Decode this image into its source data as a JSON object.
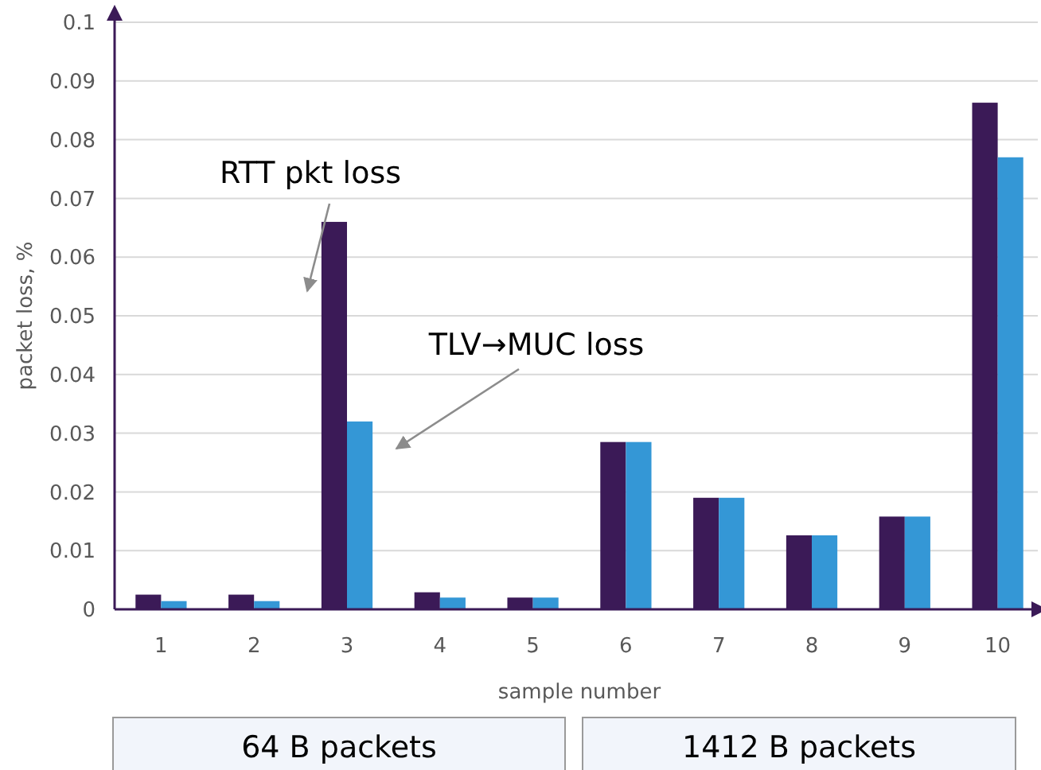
{
  "chart_data": {
    "type": "bar",
    "xlabel": "sample number",
    "ylabel": "packet loss, %",
    "categories": [
      "1",
      "2",
      "3",
      "4",
      "5",
      "6",
      "7",
      "8",
      "9",
      "10"
    ],
    "series": [
      {
        "color": "#3b1a57",
        "values": [
          0.0025,
          0.0025,
          0.066,
          0.0029,
          0.002,
          0.0285,
          0.019,
          0.0126,
          0.0158,
          0.0863
        ]
      },
      {
        "color": "#3497d6",
        "values": [
          0.0014,
          0.0014,
          0.032,
          0.002,
          0.002,
          0.0285,
          0.019,
          0.0126,
          0.0158,
          0.077
        ]
      }
    ],
    "ylim": [
      0,
      0.1
    ],
    "yticks": [
      0,
      0.01,
      0.02,
      0.03,
      0.04,
      0.05,
      0.06,
      0.07,
      0.08,
      0.09,
      0.1
    ],
    "grid": "y",
    "annotations": [
      "RTT pkt loss",
      "TLV→MUC loss",
      "64 B packets",
      "1412 B packets"
    ]
  }
}
